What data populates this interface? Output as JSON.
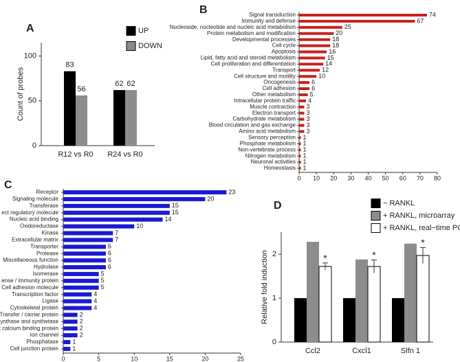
{
  "chart_data": [
    {
      "type": "bar",
      "orientation": "vertical",
      "panel": "A",
      "ylabel": "Count of probes",
      "categories": [
        "R12 vs R0",
        "R24 vs R0"
      ],
      "series": [
        {
          "name": "UP",
          "color": "#000000",
          "values": [
            83,
            62
          ]
        },
        {
          "name": "DOWN",
          "color": "#8c8c8c",
          "values": [
            56,
            62
          ]
        }
      ],
      "ylim": [
        0,
        115
      ],
      "yticks": [
        0,
        50,
        100
      ],
      "show_values": true
    },
    {
      "type": "bar",
      "orientation": "horizontal",
      "panel": "B",
      "color": "#c8201e",
      "categories": [
        "Signal transduction",
        "Immunity and defense",
        "Nucleoside, nucleotide and nucleic acid metabolism",
        "Protein metabolism and modification",
        "Developmental processes",
        "Cell cycle",
        "Apoptosis",
        "Lipid, fatty acid and steroid metabolism",
        "Cell proliferation and differentiation",
        "Transport",
        "Cell structure and motility",
        "Oncogenesis",
        "Cell adhesion",
        "Other metabolism",
        "Intracellular protein traffic",
        "Muscle contraction",
        "Electron transport",
        "Carbohydrate metabolism",
        "Blood circulation and gas exchange",
        "Amino acid metabolism",
        "Sensory perception",
        "Phosphate metabolism",
        "Non-vertebrate process",
        "Nitrogen metabolism",
        "Neuronal activities",
        "Homeostasis"
      ],
      "values": [
        74,
        67,
        25,
        20,
        18,
        18,
        16,
        15,
        14,
        12,
        10,
        6,
        6,
        5,
        4,
        3,
        3,
        3,
        3,
        3,
        1,
        1,
        1,
        1,
        1,
        1
      ],
      "xlim": [
        0,
        80
      ],
      "xticks": [
        0,
        10,
        20,
        30,
        40,
        50,
        60,
        70,
        80
      ],
      "show_values": true
    },
    {
      "type": "bar",
      "orientation": "horizontal",
      "panel": "C",
      "color": "#1a1ad2",
      "categories": [
        "Receptor",
        "Signaling molecule",
        "Transferase",
        "ect regulatory molecule",
        "Nucleic acid binding",
        "Oxidoreductase",
        "Kinase",
        "Extracellular matrix",
        "Transporter",
        "Protease",
        "Miscellaneous function",
        "Hydrolase",
        "Isomerase",
        "ense / immunity protein",
        "Cell adhesion molecule",
        "Transcription factor",
        "Ligase",
        "Cytoskeletal protein",
        "Transfer / carrier protein",
        "ynthase and synthetase",
        "t calcium binding protein",
        "Ion channel",
        "Phosphatase",
        "Cell junction protein"
      ],
      "values": [
        23,
        20,
        15,
        15,
        14,
        10,
        7,
        7,
        6,
        6,
        6,
        6,
        5,
        5,
        5,
        4,
        4,
        4,
        2,
        2,
        2,
        2,
        1,
        1
      ],
      "xlim": [
        0,
        25
      ],
      "xticks": [
        0,
        5,
        10,
        15,
        20,
        25
      ],
      "show_values": true
    },
    {
      "type": "bar",
      "orientation": "vertical",
      "panel": "D",
      "ylabel": "Relative fold induction",
      "categories": [
        "Ccl2",
        "Cxcl1",
        "Slfn 1"
      ],
      "series": [
        {
          "name": "− RANKL",
          "color": "#000000",
          "values": [
            1,
            1,
            1
          ]
        },
        {
          "name": "+ RANKL, microarray",
          "color": "#8c8c8c",
          "values": [
            2.28,
            1.88,
            2.24
          ]
        },
        {
          "name": "+ RANKL, real−time PCR",
          "color": "#ffffff",
          "values": [
            1.72,
            1.72,
            1.97
          ],
          "errors": [
            0.08,
            0.15,
            0.18
          ],
          "annotations": [
            "*",
            "*",
            "*"
          ]
        }
      ],
      "ylim": [
        0,
        2.5
      ],
      "yticks": [
        0,
        1,
        2
      ],
      "show_values": false
    }
  ]
}
